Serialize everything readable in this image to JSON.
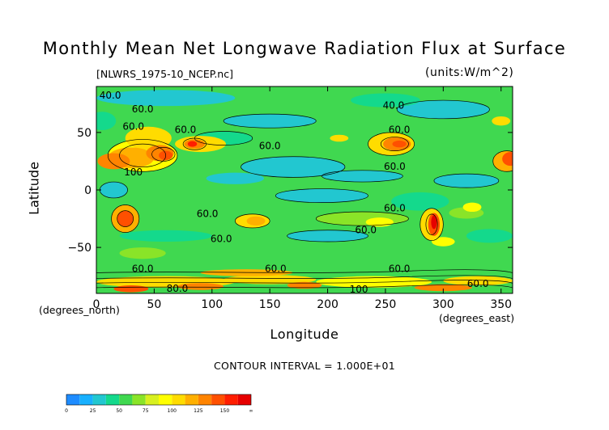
{
  "chart_data": {
    "type": "heatmap",
    "title": "Monthly Mean Net Longwave Radiation Flux at Surface",
    "file_label": "[NLWRS_1975-10_NCEP.nc]",
    "units_label": "(units:W/m^2)",
    "xlabel": "Longitude",
    "ylabel": "Latitude",
    "x_units_label": "(degrees_east)",
    "y_units_label": "(degrees_north)",
    "xlim": [
      0,
      360
    ],
    "ylim": [
      -90,
      90
    ],
    "x_ticks": [
      "0",
      "50",
      "100",
      "150",
      "200",
      "250",
      "300",
      "350"
    ],
    "x_tick_values": [
      0,
      50,
      100,
      150,
      200,
      250,
      300,
      350
    ],
    "y_ticks": [
      "50",
      "0",
      "-50"
    ],
    "y_tick_values": [
      50,
      0,
      -50
    ],
    "contour_interval": "CONTOUR INTERVAL = 1.000E+01",
    "contour_labels": [
      {
        "text": "40.0",
        "lon": 12,
        "lat": 82
      },
      {
        "text": "60.0",
        "lon": 40,
        "lat": 70
      },
      {
        "text": "60.0",
        "lon": 32,
        "lat": 55
      },
      {
        "text": "60.0",
        "lon": 77,
        "lat": 52
      },
      {
        "text": "40.0",
        "lon": 257,
        "lat": 73
      },
      {
        "text": "60.0",
        "lon": 262,
        "lat": 52
      },
      {
        "text": "60.0",
        "lon": 150,
        "lat": 38
      },
      {
        "text": "100",
        "lon": 32,
        "lat": 15
      },
      {
        "text": "60.0",
        "lon": 258,
        "lat": 20
      },
      {
        "text": "60.0",
        "lon": 96,
        "lat": -21
      },
      {
        "text": "60.0",
        "lon": 258,
        "lat": -16
      },
      {
        "text": "60.0",
        "lon": 233,
        "lat": -35
      },
      {
        "text": "60.0",
        "lon": 108,
        "lat": -43
      },
      {
        "text": "60.0",
        "lon": 40,
        "lat": -69
      },
      {
        "text": "60.0",
        "lon": 155,
        "lat": -69
      },
      {
        "text": "60.0",
        "lon": 262,
        "lat": -69
      },
      {
        "text": "60.0",
        "lon": 330,
        "lat": -82
      },
      {
        "text": "80.0",
        "lon": 70,
        "lat": -86
      },
      {
        "text": "100",
        "lon": 227,
        "lat": -87
      }
    ],
    "colorbar": {
      "tick_labels": [
        "0",
        "25",
        "50",
        "75",
        "100",
        "125",
        "150",
        "∞"
      ],
      "levels": [
        0,
        12.5,
        25,
        37.5,
        50,
        62.5,
        75,
        87.5,
        100,
        112.5,
        125,
        137.5,
        150,
        162.5
      ],
      "colors": [
        "#1e8cff",
        "#18b0ff",
        "#22c7d0",
        "#14d98c",
        "#40d850",
        "#8ae428",
        "#d8f020",
        "#ffff00",
        "#ffdc00",
        "#ffb000",
        "#ff8400",
        "#ff5000",
        "#ff1e00",
        "#e60000"
      ]
    }
  }
}
